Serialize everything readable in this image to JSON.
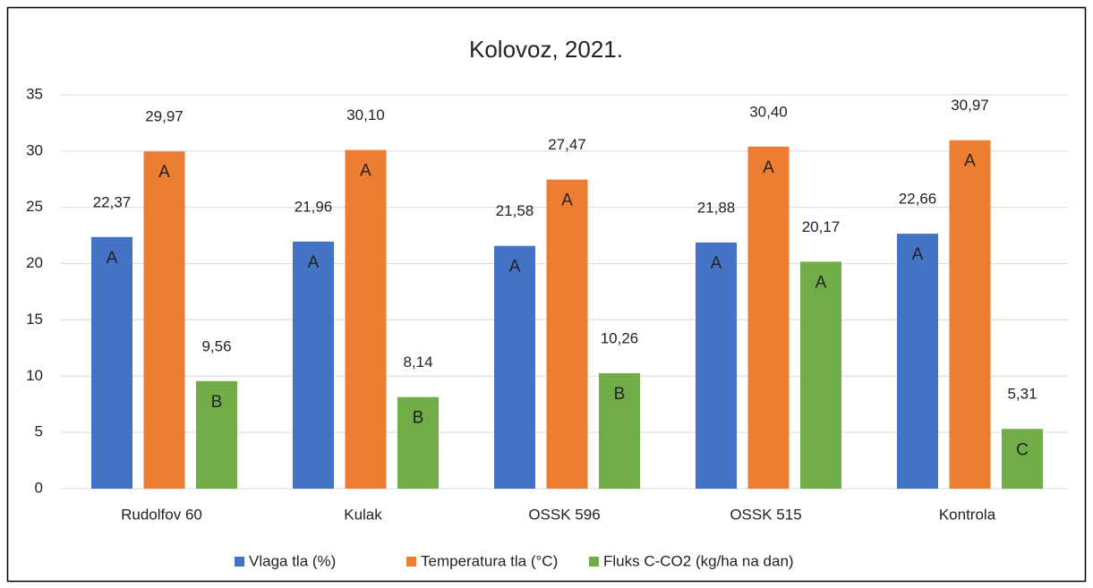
{
  "chart_data": {
    "type": "bar",
    "title": "Kolovoz, 2021.",
    "categories": [
      "Rudolfov 60",
      "Kulak",
      "OSSK 596",
      "OSSK 515",
      "Kontrola"
    ],
    "series": [
      {
        "name": "Vlaga tla (%)",
        "color": "#4472c4",
        "values": [
          22.37,
          21.96,
          21.58,
          21.88,
          22.66
        ],
        "value_labels": [
          "22,37",
          "21,96",
          "21,58",
          "21,88",
          "22,66"
        ],
        "letters": [
          "A",
          "A",
          "A",
          "A",
          "A"
        ]
      },
      {
        "name": "Temperatura tla (°C)",
        "color": "#ed7d31",
        "values": [
          29.97,
          30.1,
          27.47,
          30.4,
          30.97
        ],
        "value_labels": [
          "29,97",
          "30,10",
          "27,47",
          "30,40",
          "30,97"
        ],
        "letters": [
          "A",
          "A",
          "A",
          "A",
          "A"
        ]
      },
      {
        "name": "Fluks C-CO2 (kg/ha na dan)",
        "color": "#70ad47",
        "values": [
          9.56,
          8.14,
          10.26,
          20.17,
          5.31
        ],
        "value_labels": [
          "9,56",
          "8,14",
          "10,26",
          "20,17",
          "5,31"
        ],
        "letters": [
          "B",
          "B",
          "B",
          "A",
          "C"
        ]
      }
    ],
    "ylim": [
      0,
      35
    ],
    "yticks": [
      0,
      5,
      10,
      15,
      20,
      25,
      30,
      35
    ],
    "grid": true,
    "legend": "bottom"
  }
}
